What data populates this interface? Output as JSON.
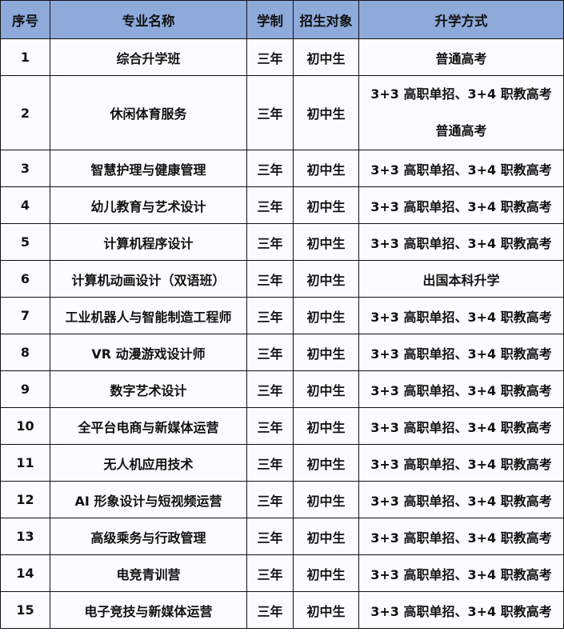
{
  "table": {
    "header_color": "#8eaadb",
    "headers": [
      "序号",
      "专业名称",
      "学制",
      "招生对象",
      "升学方式"
    ],
    "rows": [
      {
        "no": "1",
        "name": "综合升学班",
        "years": "三年",
        "target": "初中生",
        "paths": [
          "普通高考"
        ]
      },
      {
        "no": "2",
        "name": "休闲体育服务",
        "years": "三年",
        "target": "初中生",
        "paths": [
          "3+3 高职单招、3+4 职教高考",
          "普通高考"
        ]
      },
      {
        "no": "3",
        "name": "智慧护理与健康管理",
        "years": "三年",
        "target": "初中生",
        "paths": [
          "3+3 高职单招、3+4 职教高考"
        ]
      },
      {
        "no": "4",
        "name": "幼儿教育与艺术设计",
        "years": "三年",
        "target": "初中生",
        "paths": [
          "3+3 高职单招、3+4 职教高考"
        ]
      },
      {
        "no": "5",
        "name": "计算机程序设计",
        "years": "三年",
        "target": "初中生",
        "paths": [
          "3+3 高职单招、3+4 职教高考"
        ]
      },
      {
        "no": "6",
        "name": "计算机动画设计（双语班）",
        "years": "三年",
        "target": "初中生",
        "paths": [
          "出国本科升学"
        ]
      },
      {
        "no": "7",
        "name": "工业机器人与智能制造工程师",
        "years": "三年",
        "target": "初中生",
        "paths": [
          "3+3 高职单招、3+4 职教高考"
        ]
      },
      {
        "no": "8",
        "name": "VR 动漫游戏设计师",
        "years": "三年",
        "target": "初中生",
        "paths": [
          "3+3 高职单招、3+4 职教高考"
        ]
      },
      {
        "no": "9",
        "name": "数字艺术设计",
        "years": "三年",
        "target": "初中生",
        "paths": [
          "3+3 高职单招、3+4 职教高考"
        ]
      },
      {
        "no": "10",
        "name": "全平台电商与新媒体运营",
        "years": "三年",
        "target": "初中生",
        "paths": [
          "3+3 高职单招、3+4 职教高考"
        ]
      },
      {
        "no": "11",
        "name": "无人机应用技术",
        "years": "三年",
        "target": "初中生",
        "paths": [
          "3+3 高职单招、3+4 职教高考"
        ]
      },
      {
        "no": "12",
        "name": "AI 形象设计与短视频运营",
        "years": "三年",
        "target": "初中生",
        "paths": [
          "3+3 高职单招、3+4 职教高考"
        ]
      },
      {
        "no": "13",
        "name": "高级乘务与行政管理",
        "years": "三年",
        "target": "初中生",
        "paths": [
          "3+3 高职单招、3+4 职教高考"
        ]
      },
      {
        "no": "14",
        "name": "电竞青训营",
        "years": "三年",
        "target": "初中生",
        "paths": [
          "3+3 高职单招、3+4 职教高考"
        ]
      },
      {
        "no": "15",
        "name": "电子竞技与新媒体运营",
        "years": "三年",
        "target": "初中生",
        "paths": [
          "3+3 高职单招、3+4 职教高考"
        ]
      }
    ]
  }
}
